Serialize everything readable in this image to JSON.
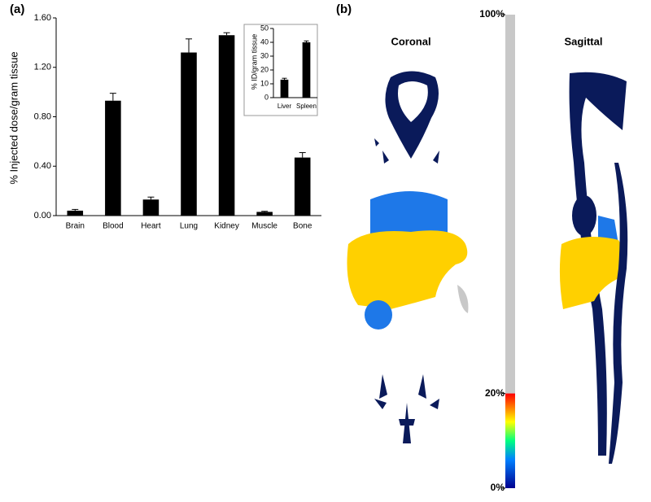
{
  "panel_labels": [
    "(a)",
    "(b)"
  ],
  "chart_data": [
    {
      "type": "bar",
      "ylabel": "% Injected dose/gram tissue",
      "categories": [
        "Brain",
        "Blood",
        "Heart",
        "Lung",
        "Kidney",
        "Muscle",
        "Bone"
      ],
      "values": [
        0.04,
        0.93,
        0.13,
        1.32,
        1.46,
        0.03,
        0.47
      ],
      "errors": [
        0.01,
        0.06,
        0.02,
        0.11,
        0.02,
        0.005,
        0.04
      ],
      "color": "#000000",
      "ylim": [
        0,
        1.6
      ],
      "yticks": [
        {
          "value": 0,
          "label": "0.00"
        },
        {
          "value": 0.4,
          "label": "0.40"
        },
        {
          "value": 0.8,
          "label": "0.80"
        },
        {
          "value": 1.2,
          "label": "1.20"
        },
        {
          "value": 1.6,
          "label": "1.60"
        }
      ]
    },
    {
      "type": "bar",
      "ylabel": "% ID/gram tissue",
      "categories": [
        "Liver",
        "Spleen"
      ],
      "values": [
        13,
        40
      ],
      "errors": [
        1,
        1
      ],
      "color": "#000000",
      "ylim": [
        0,
        50
      ],
      "yticks": [
        0,
        10,
        20,
        30,
        40,
        50
      ]
    }
  ],
  "images": {
    "coronal": "Coronal",
    "sagittal": "Sagittal",
    "colorbar": {
      "ylim": [
        0,
        100
      ],
      "ticks": [
        {
          "value": 100,
          "label": "100%"
        },
        {
          "value": 20,
          "label": "20%"
        },
        {
          "value": 0,
          "label": "0%"
        }
      ]
    }
  }
}
